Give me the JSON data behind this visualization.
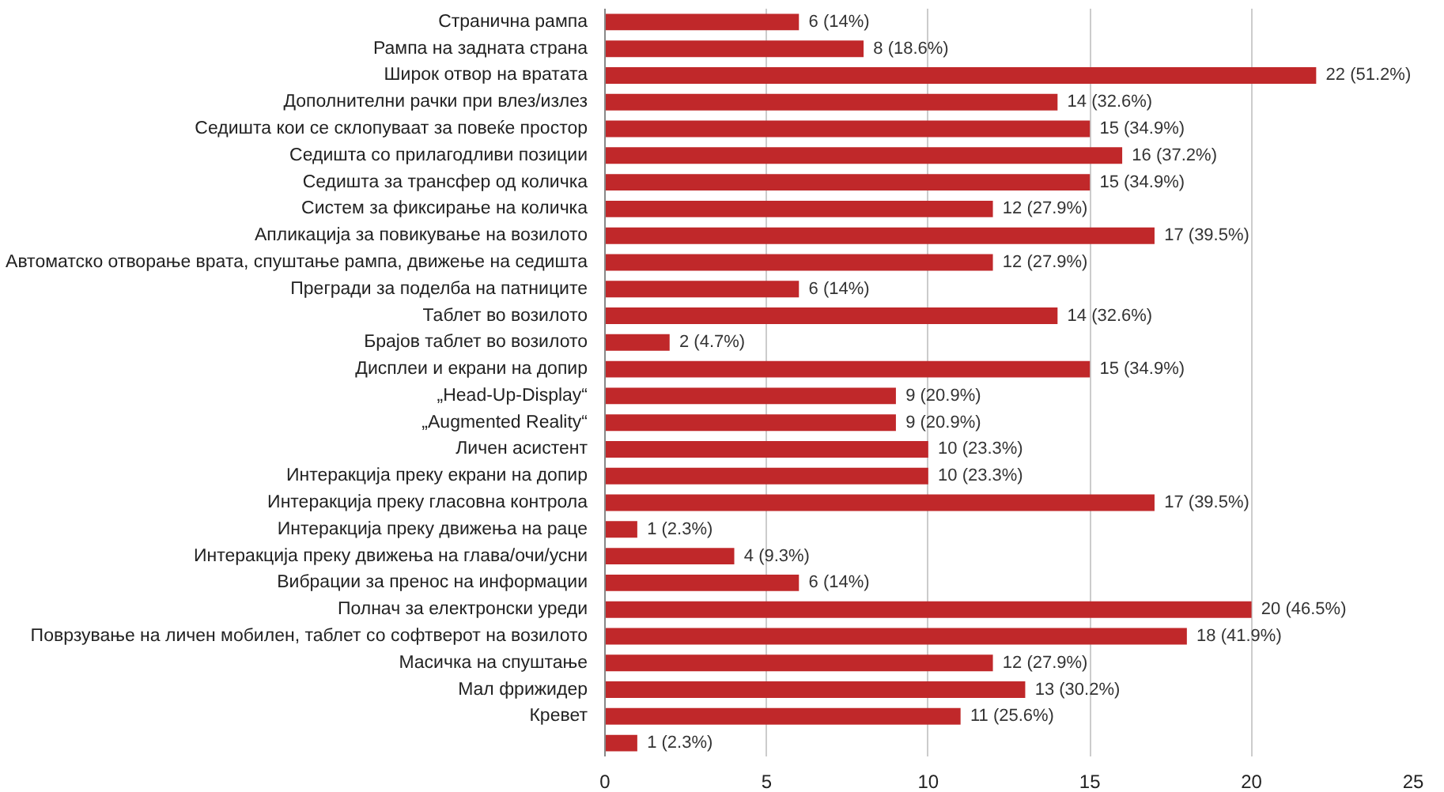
{
  "chart_data": {
    "type": "bar",
    "orientation": "horizontal",
    "categories": [
      "Странична рампа",
      "Рампа на задната страна",
      "Широк отвор на вратата",
      "Дополнителни рачки при влез/излез",
      "Седишта кои се склопуваат за повеќе простор",
      "Седишта со прилагодливи позиции",
      "Седишта за трансфер од количка",
      "Систем за фиксирање на количка",
      "Апликација за повикување на возилото",
      "Автоматско отворање врата, спуштање рампа, движење на седишта",
      "Прегради за поделба на патниците",
      "Таблет во возилото",
      "Брајов таблет во возилото",
      "Дисплеи и екрани на допир",
      "„Head-Up-Display“",
      "„Augmented Reality“",
      "Личен асистент",
      "Интеракција преку екрани на допир",
      "Интеракција преку гласовна контрола",
      "Интеракција преку движења на раце",
      "Интеракција преку движења на глава/очи/усни",
      "Вибрации за пренос на информации",
      "Полнач за електронски уреди",
      "Поврзување на личен мобилен, таблет со софтверот на возилото",
      "Масичка на спуштање",
      "Мал фрижидер",
      "Кревет",
      null
    ],
    "values": [
      6,
      8,
      22,
      14,
      15,
      16,
      15,
      12,
      17,
      12,
      6,
      14,
      2,
      15,
      9,
      9,
      10,
      10,
      17,
      1,
      4,
      6,
      20,
      18,
      12,
      13,
      11,
      1
    ],
    "value_labels": [
      "6 (14%)",
      "8 (18.6%)",
      "22 (51.2%)",
      "14 (32.6%)",
      "15 (34.9%)",
      "16 (37.2%)",
      "15 (34.9%)",
      "12 (27.9%)",
      "17 (39.5%)",
      "12 (27.9%)",
      "6 (14%)",
      "14 (32.6%)",
      "2 (4.7%)",
      "15 (34.9%)",
      "9 (20.9%)",
      "9 (20.9%)",
      "10 (23.3%)",
      "10 (23.3%)",
      "17 (39.5%)",
      "1 (2.3%)",
      "4 (9.3%)",
      "6 (14%)",
      "20 (46.5%)",
      "18 (41.9%)",
      "12 (27.9%)",
      "13 (30.2%)",
      "11 (25.6%)",
      "1 (2.3%)"
    ],
    "color": "#c0282a",
    "xlim": [
      0,
      25
    ],
    "xticks": [
      0,
      5,
      10,
      15,
      20,
      25
    ],
    "grid": "x"
  }
}
